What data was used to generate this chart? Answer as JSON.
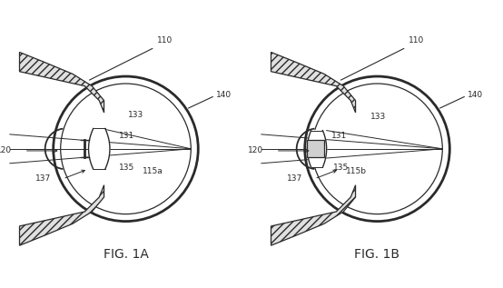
{
  "fig_width": 5.54,
  "fig_height": 3.17,
  "dpi": 100,
  "bg_color": "#ffffff",
  "line_color": "#2a2a2a",
  "label_fontsize": 6.5,
  "caption_fontsize": 10,
  "caption_1": "FIG. 1A",
  "caption_2": "FIG. 1B",
  "label_110": "110",
  "label_140": "140",
  "label_133": "133",
  "label_131": "131",
  "label_135": "135",
  "label_137": "137",
  "label_120": "120",
  "label_115a": "115a",
  "label_115b": "115b"
}
